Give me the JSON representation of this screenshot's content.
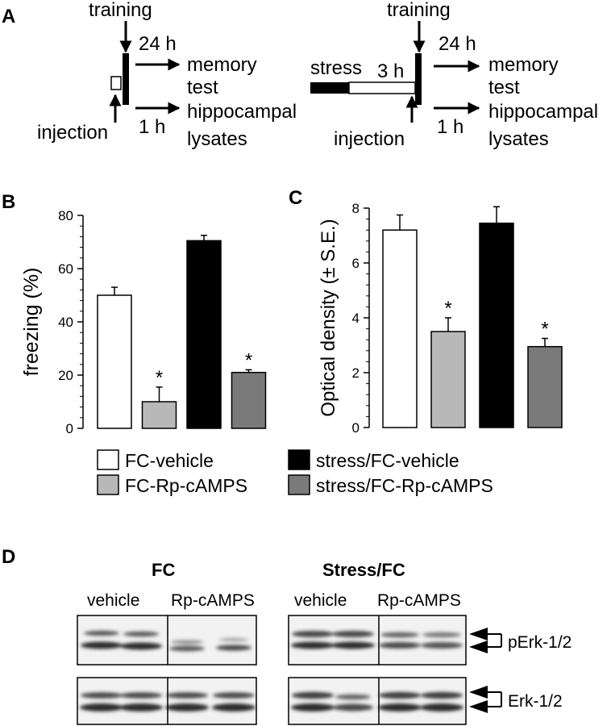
{
  "panel_a": {
    "letter": "A",
    "left": {
      "training": "training",
      "h24": "24 h",
      "memory": "memory",
      "test": "test",
      "injection": "injection",
      "h1": "1 h",
      "hippocampal": "hippocampal",
      "lysates": "lysates"
    },
    "right": {
      "training": "training",
      "stress": "stress",
      "h3": "3 h",
      "h24": "24 h",
      "memory": "memory",
      "test": "test",
      "injection": "injection",
      "h1": "1 h",
      "hippocampal": "hippocampal",
      "lysates": "lysates"
    }
  },
  "chart_data": [
    {
      "panel": "B",
      "type": "bar",
      "ylabel": "freezing (%)",
      "ylim": [
        0,
        80
      ],
      "yticks": [
        0,
        20,
        40,
        60,
        80
      ],
      "categories": [
        "FC-vehicle",
        "FC-Rp-cAMPS",
        "stress/FC-vehicle",
        "stress/FC-Rp-cAMPS"
      ],
      "values": [
        50,
        10,
        70.5,
        21
      ],
      "errors": [
        3,
        5.5,
        2,
        1
      ],
      "significant": [
        false,
        true,
        false,
        true
      ],
      "star": "*",
      "colors": [
        "#ffffff",
        "#b8b8b8",
        "#000000",
        "#7a7a7a"
      ]
    },
    {
      "panel": "C",
      "type": "bar",
      "ylabel": "Optical density (± S.E.)",
      "ylim": [
        0,
        8
      ],
      "yticks": [
        0,
        2,
        4,
        6,
        8
      ],
      "categories": [
        "FC-vehicle",
        "FC-Rp-cAMPS",
        "stress/FC-vehicle",
        "stress/FC-Rp-cAMPS"
      ],
      "values": [
        7.2,
        3.5,
        7.45,
        2.95
      ],
      "errors": [
        0.55,
        0.5,
        0.6,
        0.3
      ],
      "significant": [
        false,
        true,
        false,
        true
      ],
      "star": "*",
      "colors": [
        "#ffffff",
        "#b8b8b8",
        "#000000",
        "#7a7a7a"
      ]
    }
  ],
  "legend": [
    {
      "label": "FC-vehicle",
      "color": "#ffffff"
    },
    {
      "label": "FC-Rp-cAMPS",
      "color": "#b8b8b8"
    },
    {
      "label": "stress/FC-vehicle",
      "color": "#000000"
    },
    {
      "label": "stress/FC-Rp-cAMPS",
      "color": "#7a7a7a"
    }
  ],
  "panel_d": {
    "letter": "D",
    "fc_title": "FC",
    "stress_title": "Stress/FC",
    "vehicle": "vehicle",
    "rp": "Rp-cAMPS",
    "perk": "pErk-1/2",
    "erk": "Erk-1/2"
  }
}
